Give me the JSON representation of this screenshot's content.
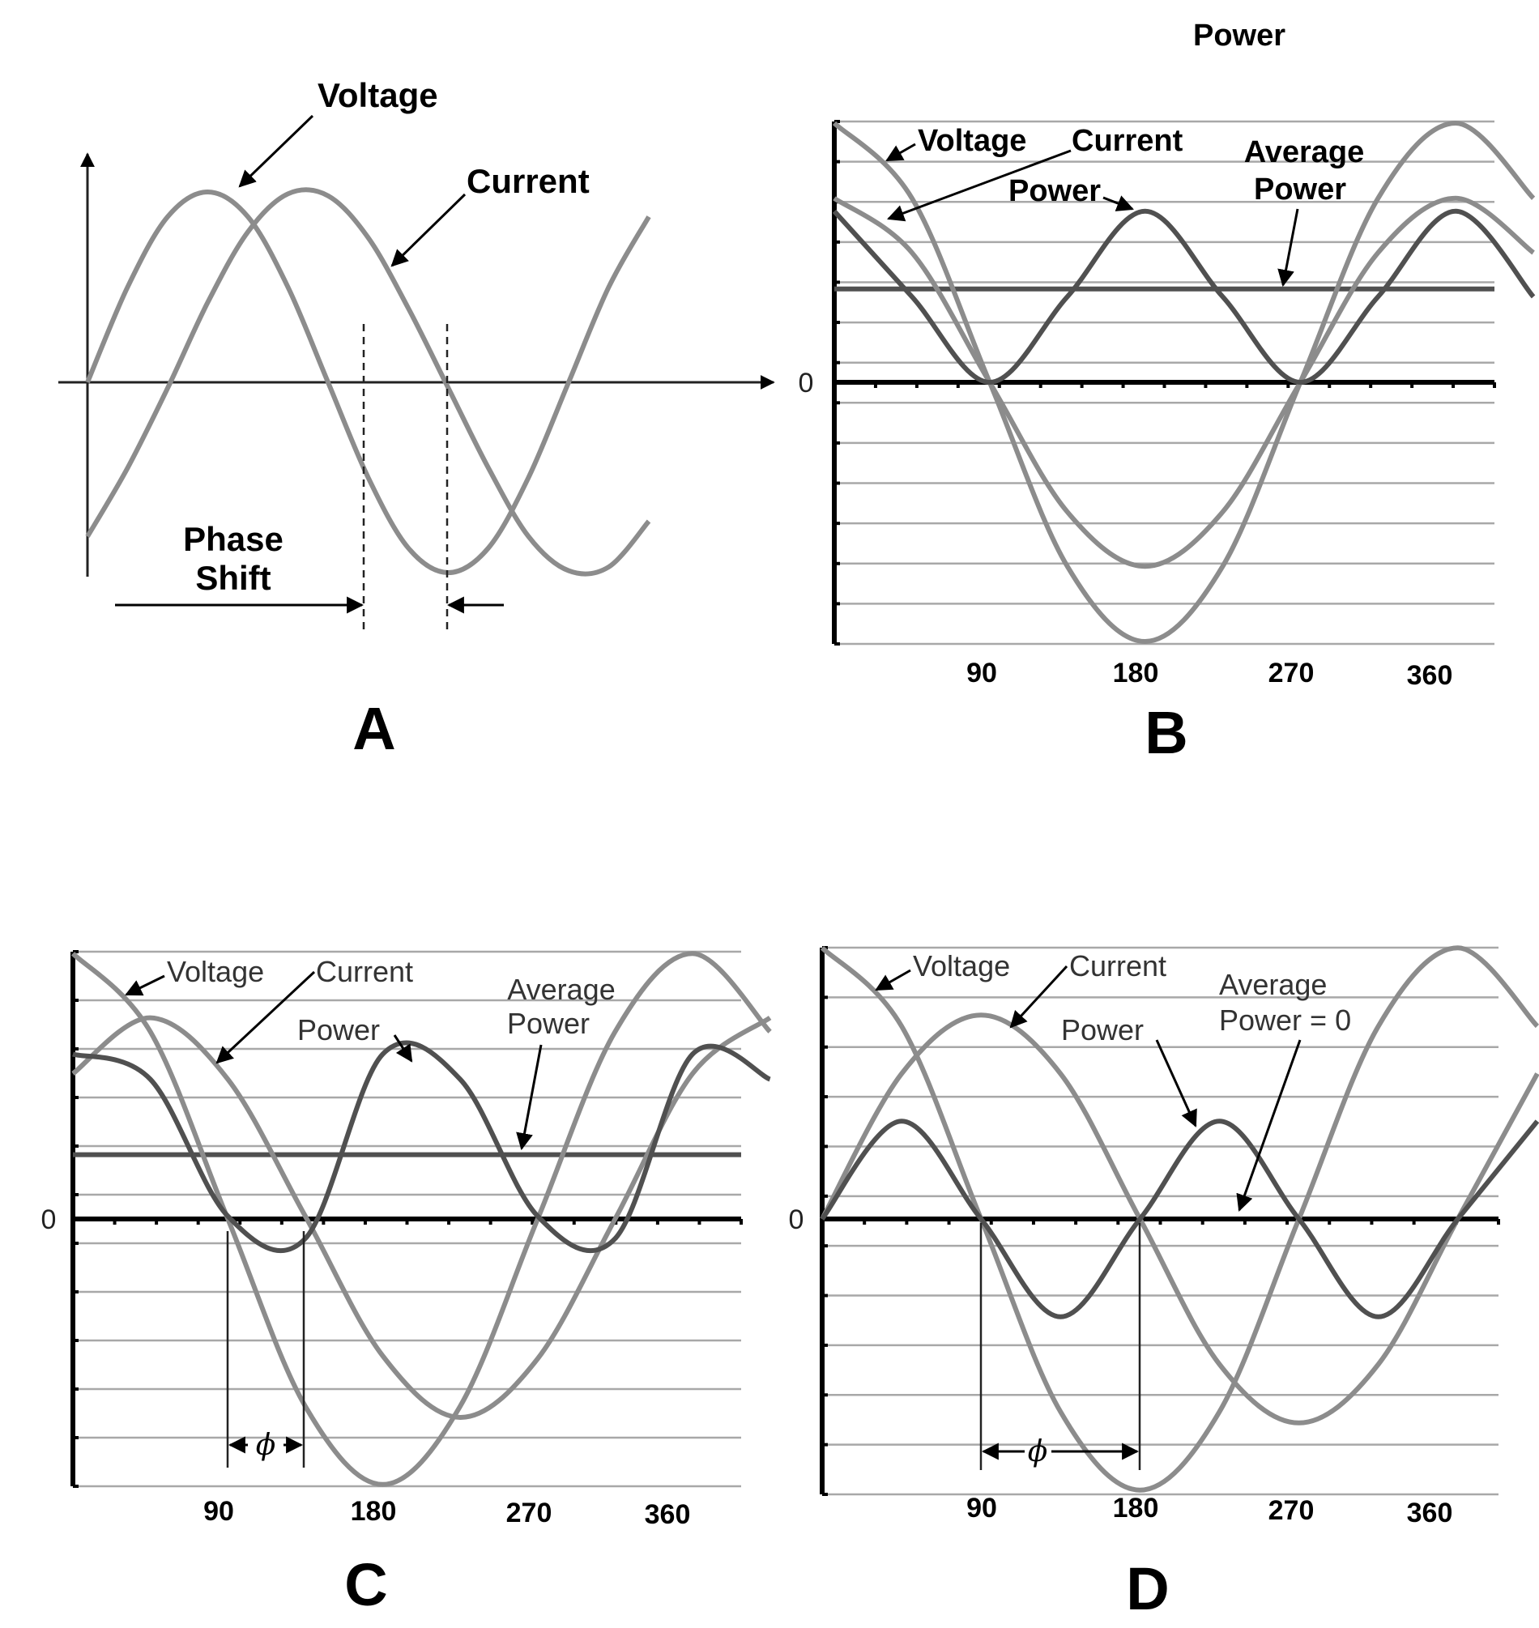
{
  "figure_title": "Power",
  "chart_data": [
    {
      "panel": "A",
      "type": "line",
      "series": [
        {
          "name": "Voltage",
          "x_deg": [
            0,
            30,
            60,
            90,
            120,
            150,
            180,
            210,
            240,
            270,
            300,
            330,
            360,
            390,
            420
          ],
          "y": [
            0,
            0.5,
            0.87,
            1,
            0.87,
            0.5,
            0,
            -0.5,
            -0.87,
            -1,
            -0.87,
            -0.5,
            0,
            0.5,
            0.87
          ]
        },
        {
          "name": "Current",
          "x_deg": [
            0,
            30,
            60,
            90,
            120,
            150,
            180,
            210,
            240,
            270,
            300,
            330,
            360,
            390,
            420
          ],
          "y": [
            -0.81,
            -0.45,
            -0.03,
            0.42,
            0.79,
            0.99,
            0.98,
            0.76,
            0.39,
            -0.03,
            -0.45,
            -0.81,
            -0.99,
            -0.97,
            -0.73
          ]
        }
      ],
      "phase_shift_deg": 55,
      "labels": {
        "voltage": "Voltage",
        "current": "Current",
        "phase_shift": [
          "Phase",
          "Shift"
        ]
      },
      "panel_label": "A"
    },
    {
      "panel": "B",
      "type": "line",
      "title": "Power",
      "x_ticks": [
        "90",
        "180",
        "270",
        "360"
      ],
      "y_zero_label": "0",
      "series": [
        {
          "name": "Voltage",
          "x_deg": [
            0,
            45,
            90,
            135,
            180,
            225,
            270,
            315,
            360,
            405
          ],
          "y": [
            1,
            0.71,
            0,
            -0.71,
            -1,
            -0.71,
            0,
            0.71,
            1,
            0.71
          ]
        },
        {
          "name": "Current",
          "x_deg": [
            0,
            45,
            90,
            135,
            180,
            225,
            270,
            315,
            360,
            405
          ],
          "y": [
            0.71,
            0.5,
            0,
            -0.5,
            -0.71,
            -0.5,
            0,
            0.5,
            0.71,
            0.5
          ]
        },
        {
          "name": "Power",
          "x_deg": [
            0,
            45,
            90,
            135,
            180,
            225,
            270,
            315,
            360,
            405
          ],
          "y": [
            0.66,
            0.33,
            0,
            0.33,
            0.66,
            0.33,
            0,
            0.33,
            0.66,
            0.33
          ]
        }
      ],
      "average_power": 0.36,
      "labels": {
        "voltage": "Voltage",
        "current": "Current",
        "power": "Power",
        "average_power": [
          "Average",
          "Power"
        ]
      },
      "panel_label": "B"
    },
    {
      "panel": "C",
      "type": "line",
      "x_ticks": [
        "90",
        "180",
        "270",
        "360"
      ],
      "y_zero_label": "0",
      "series": [
        {
          "name": "Voltage",
          "x_deg": [
            0,
            45,
            90,
            135,
            180,
            225,
            270,
            315,
            360,
            405
          ],
          "y": [
            0.95,
            0.67,
            0,
            -0.67,
            -0.95,
            -0.67,
            0,
            0.67,
            0.95,
            0.67
          ]
        },
        {
          "name": "Current",
          "x_deg": [
            0,
            45,
            90,
            135,
            180,
            225,
            270,
            315,
            360,
            405
          ],
          "y": [
            0.52,
            0.72,
            0.5,
            0.01,
            -0.49,
            -0.71,
            -0.5,
            0,
            0.52,
            0.72
          ]
        },
        {
          "name": "Power",
          "x_deg": [
            0,
            45,
            90,
            135,
            180,
            225,
            270,
            315,
            360,
            405
          ],
          "y": [
            0.59,
            0.5,
            0.01,
            -0.07,
            0.59,
            0.5,
            0.01,
            -0.07,
            0.59,
            0.5
          ]
        }
      ],
      "average_power": 0.23,
      "phase_angle_deg": 45,
      "labels": {
        "voltage": "Voltage",
        "current": "Current",
        "power": "Power",
        "average_power": [
          "Average",
          "Power"
        ],
        "phi": "ϕ"
      },
      "panel_label": "C"
    },
    {
      "panel": "D",
      "type": "line",
      "x_ticks": [
        "90",
        "180",
        "270",
        "360"
      ],
      "y_zero_label": "0",
      "series": [
        {
          "name": "Voltage",
          "x_deg": [
            0,
            45,
            90,
            135,
            180,
            225,
            270,
            315,
            360,
            405
          ],
          "y": [
            0.97,
            0.69,
            0,
            -0.69,
            -0.97,
            -0.69,
            0,
            0.69,
            0.97,
            0.69
          ]
        },
        {
          "name": "Current",
          "x_deg": [
            0,
            45,
            90,
            135,
            180,
            225,
            270,
            315,
            360,
            405
          ],
          "y": [
            0,
            0.52,
            0.73,
            0.52,
            0,
            -0.52,
            -0.73,
            -0.52,
            0,
            0.52
          ]
        },
        {
          "name": "Power",
          "x_deg": [
            0,
            45,
            90,
            135,
            180,
            225,
            270,
            315,
            360,
            405
          ],
          "y": [
            0,
            0.35,
            0,
            -0.35,
            0,
            0.35,
            0,
            -0.35,
            0,
            0.35
          ]
        }
      ],
      "average_power": 0,
      "phase_angle_deg": 90,
      "labels": {
        "voltage": "Voltage",
        "current": "Current",
        "power": "Power",
        "average_power": [
          "Average",
          "Power = 0"
        ],
        "phi": "ϕ"
      },
      "panel_label": "D"
    }
  ]
}
